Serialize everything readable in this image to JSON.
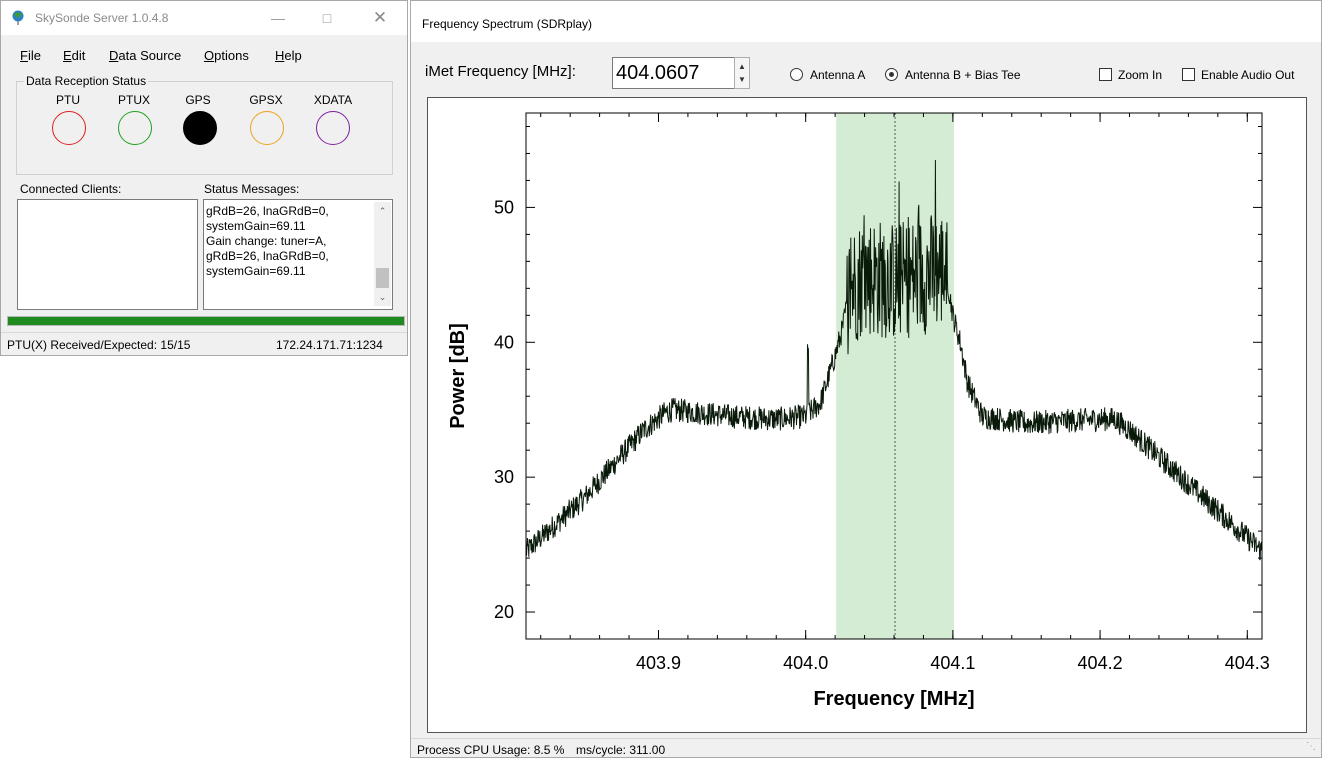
{
  "left_window": {
    "title": "SkySonde Server 1.0.4.8",
    "menu": [
      {
        "label": "File",
        "u": "F",
        "rest": "ile"
      },
      {
        "label": "Edit",
        "u": "E",
        "rest": "dit"
      },
      {
        "label": "Data Source",
        "u": "D",
        "rest": "ata Source"
      },
      {
        "label": "Options",
        "u": "O",
        "rest": "ptions"
      },
      {
        "label": "Help",
        "u": "H",
        "rest": "elp"
      }
    ],
    "reception_group_label": "Data Reception Status",
    "indicators": [
      {
        "label": "PTU",
        "color": "#e02020",
        "filled": false
      },
      {
        "label": "PTUX",
        "color": "#20a020",
        "filled": false
      },
      {
        "label": "GPS",
        "color": "#000000",
        "filled": true
      },
      {
        "label": "GPSX",
        "color": "#f0a020",
        "filled": false
      },
      {
        "label": "XDATA",
        "color": "#8020a0",
        "filled": false
      }
    ],
    "connected_clients_label": "Connected Clients:",
    "status_messages_label": "Status Messages:",
    "status_messages": [
      "gRdB=26, lnaGRdB=0,",
      "systemGain=69.11",
      "Gain change: tuner=A,",
      "gRdB=26, lnaGRdB=0,",
      "systemGain=69.11"
    ],
    "progress_percent": 100,
    "status_left": "PTU(X) Received/Expected: 15/15",
    "status_right": "172.24.171.71:1234"
  },
  "right_window": {
    "title": "Frequency Spectrum (SDRplay)",
    "freq_label": "iMet Frequency [MHz]:",
    "freq_value": "404.0607",
    "antenna_a": "Antenna A",
    "antenna_b": "Antenna B + Bias Tee",
    "antenna_selected": "B",
    "zoom_in": "Zoom In",
    "enable_audio": "Enable Audio Out",
    "cpu_usage": "Process CPU Usage: 8.5 %",
    "ms_cycle": "ms/cycle: 311.00"
  },
  "chart_data": {
    "type": "line",
    "title": "",
    "xlabel": "Frequency [MHz]",
    "ylabel": "Power [dB]",
    "xlim": [
      403.81,
      404.31
    ],
    "ylim": [
      18,
      57
    ],
    "xticks": [
      403.9,
      404.0,
      404.1,
      404.2,
      404.3
    ],
    "xtick_labels": [
      "403.9",
      "404.0",
      "404.1",
      "404.2",
      "404.3"
    ],
    "yticks": [
      20,
      30,
      40,
      50
    ],
    "ytick_labels": [
      "20",
      "30",
      "40",
      "50"
    ],
    "highlight_band": {
      "x0": 404.0207,
      "x1": 404.1007,
      "color": "#d4ebd4"
    },
    "center_frequency": 404.0607,
    "grid": false,
    "series": [
      {
        "x": [
          403.81,
          403.83,
          403.85,
          403.87,
          403.89,
          403.905,
          403.91,
          403.95,
          403.98,
          404.0,
          404.01,
          404.02,
          404.025,
          404.03,
          404.04,
          404.06,
          404.08,
          404.095,
          404.1,
          404.105,
          404.11,
          404.12,
          404.15,
          404.2,
          404.21,
          404.22,
          404.25,
          404.28,
          404.31
        ],
        "y": [
          24.5,
          26.5,
          28.5,
          31,
          33.5,
          34.8,
          35,
          34.5,
          34.3,
          34.5,
          35.5,
          39,
          41,
          44,
          45,
          44.5,
          45,
          45.5,
          42,
          40,
          37,
          34.5,
          34,
          34.3,
          34.3,
          33.5,
          30.5,
          27.5,
          24.5
        ]
      }
    ]
  }
}
